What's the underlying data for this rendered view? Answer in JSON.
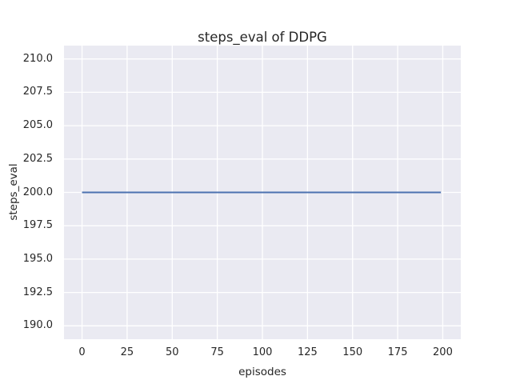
{
  "chart_data": {
    "type": "line",
    "title": "steps_eval of DDPG",
    "xlabel": "episodes",
    "ylabel": "steps_eval",
    "x_ticks": [
      0,
      25,
      50,
      75,
      100,
      125,
      150,
      175,
      200
    ],
    "x_tick_labels": [
      "0",
      "25",
      "50",
      "75",
      "100",
      "125",
      "150",
      "175",
      "200"
    ],
    "y_ticks": [
      190.0,
      192.5,
      195.0,
      197.5,
      200.0,
      202.5,
      205.0,
      207.5,
      210.0
    ],
    "y_tick_labels": [
      "190.0",
      "192.5",
      "195.0",
      "197.5",
      "200.0",
      "202.5",
      "205.0",
      "207.5",
      "210.0"
    ],
    "xlim": [
      -10,
      210
    ],
    "ylim": [
      189,
      211
    ],
    "grid": true,
    "legend_position": "none",
    "style": "seaborn-darkgrid",
    "series": [
      {
        "name": "steps_eval",
        "x": [
          0,
          199
        ],
        "y": [
          200,
          200
        ],
        "description": "constant line at steps_eval = 200 from episode 0 to episode 199"
      }
    ],
    "colors": {
      "line": "#4C72B0",
      "plot_background": "#EAEAF2",
      "figure_background": "#FFFFFF",
      "grid": "#FFFFFF",
      "text": "#262626"
    }
  }
}
